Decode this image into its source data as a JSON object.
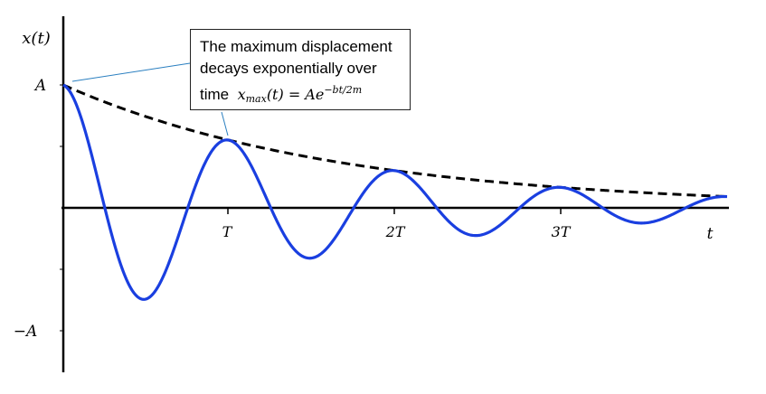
{
  "axes": {
    "y_label": "x(t)",
    "x_label": "t",
    "amplitude_label": "A",
    "neg_amplitude_label": "−A",
    "x_ticks": [
      "T",
      "2T",
      "3T"
    ]
  },
  "callout": {
    "line1": "The maximum displacement",
    "line2": "decays exponentially over",
    "line3_prefix": "time",
    "formula_lhs": "x",
    "formula_sub": "max",
    "formula_mid": "(t) = Ae",
    "formula_exp": "−bt/2m"
  },
  "chart_data": {
    "type": "line",
    "description_units": "time in periods T, displacement in units of A",
    "xlim": [
      0,
      4.0
    ],
    "ylim": [
      -1,
      1
    ],
    "decay_per_period": 0.55,
    "x_tick_positions": [
      1,
      2,
      3
    ],
    "series": [
      {
        "color": "#1a3fe0",
        "style": "solid"
      },
      {
        "color": "#000000",
        "style": "dashed"
      }
    ]
  }
}
